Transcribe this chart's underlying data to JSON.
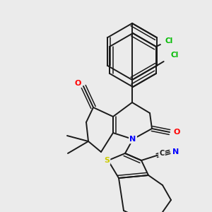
{
  "background_color": "#ebebeb",
  "bond_color": "#1a1a1a",
  "atom_colors": {
    "O": "#ff0000",
    "N": "#0000ff",
    "S": "#cccc00",
    "Cl": "#00bb00",
    "C": "#1a1a1a"
  },
  "lw": 1.4,
  "lw2": 1.1
}
